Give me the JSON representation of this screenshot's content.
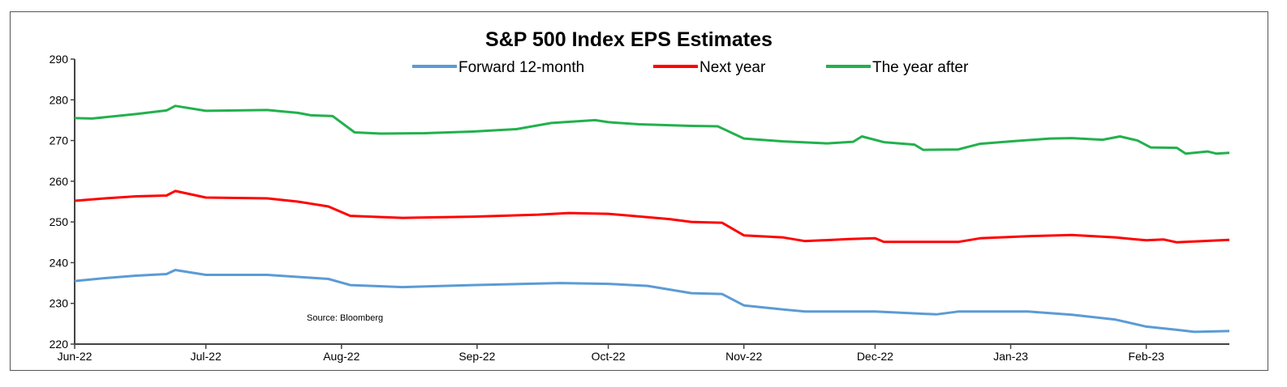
{
  "chart_data": {
    "type": "line",
    "title": "S&P 500 Index EPS Estimates",
    "source_note": "Source: Bloomberg",
    "xlabel": "",
    "ylabel": "",
    "ylim": [
      220,
      290
    ],
    "yticks": [
      220,
      230,
      240,
      250,
      260,
      270,
      280,
      290
    ],
    "xticks": [
      {
        "date": "2022-06-01",
        "label": "Jun-22"
      },
      {
        "date": "2022-07-01",
        "label": "Jul-22"
      },
      {
        "date": "2022-08-01",
        "label": "Aug-22"
      },
      {
        "date": "2022-09-01",
        "label": "Sep-22"
      },
      {
        "date": "2022-10-01",
        "label": "Oct-22"
      },
      {
        "date": "2022-11-01",
        "label": "Nov-22"
      },
      {
        "date": "2022-12-01",
        "label": "Dec-22"
      },
      {
        "date": "2023-01-01",
        "label": "Jan-23"
      },
      {
        "date": "2023-02-01",
        "label": "Feb-23"
      }
    ],
    "xlim": [
      "2022-06-01",
      "2023-02-20"
    ],
    "grid": false,
    "legend_position": "top-center",
    "series": [
      {
        "name": "Forward 12-month",
        "color": "#5b9bd5",
        "points": [
          [
            "2022-06-01",
            235.5
          ],
          [
            "2022-06-08",
            236.2
          ],
          [
            "2022-06-15",
            236.8
          ],
          [
            "2022-06-22",
            237.2
          ],
          [
            "2022-06-24",
            238.2
          ],
          [
            "2022-07-01",
            237.0
          ],
          [
            "2022-07-15",
            237.0
          ],
          [
            "2022-07-22",
            236.5
          ],
          [
            "2022-07-29",
            236.0
          ],
          [
            "2022-08-03",
            234.5
          ],
          [
            "2022-08-15",
            234.0
          ],
          [
            "2022-08-31",
            234.5
          ],
          [
            "2022-09-20",
            235.0
          ],
          [
            "2022-10-01",
            234.8
          ],
          [
            "2022-10-10",
            234.3
          ],
          [
            "2022-10-20",
            232.5
          ],
          [
            "2022-10-27",
            232.3
          ],
          [
            "2022-11-01",
            229.5
          ],
          [
            "2022-11-10",
            228.5
          ],
          [
            "2022-11-15",
            228.0
          ],
          [
            "2022-12-01",
            228.0
          ],
          [
            "2022-12-15",
            227.3
          ],
          [
            "2022-12-20",
            228.0
          ],
          [
            "2023-01-05",
            228.0
          ],
          [
            "2023-01-15",
            227.2
          ],
          [
            "2023-01-25",
            226.0
          ],
          [
            "2023-02-01",
            224.3
          ],
          [
            "2023-02-08",
            223.5
          ],
          [
            "2023-02-12",
            223.0
          ],
          [
            "2023-02-20",
            223.2
          ]
        ]
      },
      {
        "name": "Next year",
        "color": "#ff0000",
        "points": [
          [
            "2022-06-01",
            255.2
          ],
          [
            "2022-06-08",
            255.8
          ],
          [
            "2022-06-15",
            256.3
          ],
          [
            "2022-06-22",
            256.5
          ],
          [
            "2022-06-24",
            257.6
          ],
          [
            "2022-07-01",
            256.0
          ],
          [
            "2022-07-15",
            255.8
          ],
          [
            "2022-07-22",
            255.0
          ],
          [
            "2022-07-29",
            253.8
          ],
          [
            "2022-08-03",
            251.5
          ],
          [
            "2022-08-15",
            251.0
          ],
          [
            "2022-08-31",
            251.3
          ],
          [
            "2022-09-15",
            251.8
          ],
          [
            "2022-09-22",
            252.2
          ],
          [
            "2022-10-01",
            252.0
          ],
          [
            "2022-10-15",
            250.7
          ],
          [
            "2022-10-20",
            250.0
          ],
          [
            "2022-10-27",
            249.8
          ],
          [
            "2022-11-01",
            246.7
          ],
          [
            "2022-11-10",
            246.2
          ],
          [
            "2022-11-15",
            245.3
          ],
          [
            "2022-11-25",
            245.8
          ],
          [
            "2022-12-01",
            246.0
          ],
          [
            "2022-12-03",
            245.1
          ],
          [
            "2022-12-20",
            245.1
          ],
          [
            "2022-12-25",
            246.0
          ],
          [
            "2023-01-05",
            246.5
          ],
          [
            "2023-01-15",
            246.8
          ],
          [
            "2023-01-25",
            246.2
          ],
          [
            "2023-02-01",
            245.5
          ],
          [
            "2023-02-05",
            245.7
          ],
          [
            "2023-02-08",
            245.0
          ],
          [
            "2023-02-20",
            245.6
          ]
        ]
      },
      {
        "name": "The year after",
        "color": "#22b14c",
        "points": [
          [
            "2022-06-01",
            275.5
          ],
          [
            "2022-06-05",
            275.4
          ],
          [
            "2022-06-15",
            276.5
          ],
          [
            "2022-06-22",
            277.4
          ],
          [
            "2022-06-24",
            278.5
          ],
          [
            "2022-07-01",
            277.3
          ],
          [
            "2022-07-15",
            277.5
          ],
          [
            "2022-07-22",
            276.8
          ],
          [
            "2022-07-25",
            276.2
          ],
          [
            "2022-07-30",
            276.0
          ],
          [
            "2022-08-04",
            272.0
          ],
          [
            "2022-08-10",
            271.7
          ],
          [
            "2022-08-20",
            271.8
          ],
          [
            "2022-08-31",
            272.2
          ],
          [
            "2022-09-10",
            272.8
          ],
          [
            "2022-09-18",
            274.3
          ],
          [
            "2022-09-28",
            275.0
          ],
          [
            "2022-10-01",
            274.5
          ],
          [
            "2022-10-08",
            274.0
          ],
          [
            "2022-10-20",
            273.6
          ],
          [
            "2022-10-26",
            273.5
          ],
          [
            "2022-11-01",
            270.5
          ],
          [
            "2022-11-10",
            269.8
          ],
          [
            "2022-11-20",
            269.3
          ],
          [
            "2022-11-26",
            269.7
          ],
          [
            "2022-11-28",
            271.0
          ],
          [
            "2022-12-03",
            269.6
          ],
          [
            "2022-12-10",
            269.0
          ],
          [
            "2022-12-12",
            267.7
          ],
          [
            "2022-12-20",
            267.8
          ],
          [
            "2022-12-25",
            269.2
          ],
          [
            "2023-01-01",
            269.8
          ],
          [
            "2023-01-10",
            270.5
          ],
          [
            "2023-01-15",
            270.6
          ],
          [
            "2023-01-22",
            270.2
          ],
          [
            "2023-01-26",
            271.0
          ],
          [
            "2023-01-30",
            270.0
          ],
          [
            "2023-02-02",
            268.3
          ],
          [
            "2023-02-08",
            268.2
          ],
          [
            "2023-02-10",
            266.8
          ],
          [
            "2023-02-15",
            267.3
          ],
          [
            "2023-02-17",
            266.8
          ],
          [
            "2023-02-20",
            267.0
          ]
        ]
      }
    ]
  }
}
